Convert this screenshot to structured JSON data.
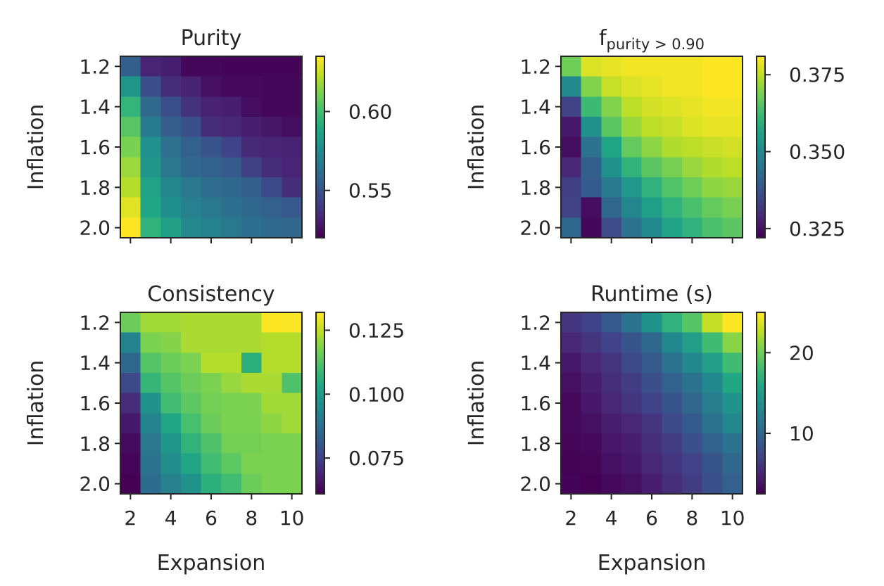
{
  "chart_data": [
    {
      "type": "heatmap",
      "title": "Purity",
      "title_sub": "",
      "title_tail": "",
      "xlabel": "",
      "ylabel": "Inflation",
      "x": [
        2,
        3,
        4,
        5,
        6,
        7,
        8,
        9,
        10
      ],
      "y": [
        1.2,
        1.3,
        1.4,
        1.5,
        1.6,
        1.7,
        1.8,
        1.9,
        2.0
      ],
      "x_ticks": [
        "2",
        "4",
        "6",
        "8",
        "10"
      ],
      "x_tick_labels_shown": false,
      "y_ticks": [
        "1.2",
        "1.4",
        "1.6",
        "1.8",
        "2.0"
      ],
      "colormap": "viridis",
      "vmin": 0.52,
      "vmax": 0.635,
      "colorbar_ticks": [
        {
          "value": 0.6,
          "label": "0.60"
        },
        {
          "value": 0.55,
          "label": "0.55"
        }
      ],
      "values": [
        [
          0.555,
          0.532,
          0.53,
          0.522,
          0.522,
          0.521,
          0.521,
          0.521,
          0.521
        ],
        [
          0.58,
          0.548,
          0.535,
          0.531,
          0.525,
          0.523,
          0.523,
          0.522,
          0.522
        ],
        [
          0.595,
          0.56,
          0.548,
          0.537,
          0.531,
          0.53,
          0.524,
          0.522,
          0.522
        ],
        [
          0.605,
          0.567,
          0.555,
          0.548,
          0.535,
          0.533,
          0.53,
          0.527,
          0.524
        ],
        [
          0.612,
          0.578,
          0.563,
          0.556,
          0.55,
          0.543,
          0.534,
          0.532,
          0.531
        ],
        [
          0.618,
          0.58,
          0.566,
          0.559,
          0.556,
          0.553,
          0.542,
          0.535,
          0.532
        ],
        [
          0.622,
          0.586,
          0.573,
          0.566,
          0.561,
          0.559,
          0.555,
          0.546,
          0.535
        ],
        [
          0.63,
          0.589,
          0.577,
          0.57,
          0.566,
          0.562,
          0.559,
          0.556,
          0.552
        ],
        [
          0.635,
          0.594,
          0.585,
          0.574,
          0.571,
          0.566,
          0.562,
          0.56,
          0.558
        ]
      ]
    },
    {
      "type": "heatmap",
      "title": "f",
      "title_sub": "purity > 0.90",
      "title_tail": "",
      "xlabel": "",
      "ylabel": "Inflation",
      "x": [
        2,
        3,
        4,
        5,
        6,
        7,
        8,
        9,
        10
      ],
      "y": [
        1.2,
        1.3,
        1.4,
        1.5,
        1.6,
        1.7,
        1.8,
        1.9,
        2.0
      ],
      "x_ticks": [
        "2",
        "4",
        "6",
        "8",
        "10"
      ],
      "x_tick_labels_shown": false,
      "y_ticks": [
        "1.2",
        "1.4",
        "1.6",
        "1.8",
        "2.0"
      ],
      "colormap": "viridis",
      "vmin": 0.322,
      "vmax": 0.381,
      "colorbar_ticks": [
        {
          "value": 0.375,
          "label": "0.375"
        },
        {
          "value": 0.35,
          "label": "0.350"
        },
        {
          "value": 0.325,
          "label": "0.325"
        }
      ],
      "values": [
        [
          0.368,
          0.378,
          0.379,
          0.38,
          0.38,
          0.38,
          0.38,
          0.381,
          0.381
        ],
        [
          0.35,
          0.37,
          0.376,
          0.378,
          0.379,
          0.38,
          0.38,
          0.381,
          0.381
        ],
        [
          0.334,
          0.362,
          0.37,
          0.375,
          0.377,
          0.378,
          0.379,
          0.38,
          0.38
        ],
        [
          0.326,
          0.352,
          0.366,
          0.372,
          0.375,
          0.376,
          0.378,
          0.379,
          0.379
        ],
        [
          0.324,
          0.344,
          0.357,
          0.367,
          0.371,
          0.374,
          0.375,
          0.376,
          0.377
        ],
        [
          0.329,
          0.34,
          0.352,
          0.36,
          0.366,
          0.369,
          0.372,
          0.374,
          0.375
        ],
        [
          0.333,
          0.339,
          0.346,
          0.353,
          0.36,
          0.365,
          0.368,
          0.371,
          0.372
        ],
        [
          0.334,
          0.324,
          0.342,
          0.349,
          0.355,
          0.36,
          0.364,
          0.367,
          0.369
        ],
        [
          0.342,
          0.323,
          0.336,
          0.344,
          0.35,
          0.356,
          0.36,
          0.364,
          0.366
        ]
      ]
    },
    {
      "type": "heatmap",
      "title": "Consistency",
      "title_sub": "",
      "title_tail": "",
      "xlabel": "Expansion",
      "ylabel": "Inflation",
      "x": [
        2,
        3,
        4,
        5,
        6,
        7,
        8,
        9,
        10
      ],
      "y": [
        1.2,
        1.3,
        1.4,
        1.5,
        1.6,
        1.7,
        1.8,
        1.9,
        2.0
      ],
      "x_ticks": [
        "2",
        "4",
        "6",
        "8",
        "10"
      ],
      "x_tick_labels_shown": true,
      "y_ticks": [
        "1.2",
        "1.4",
        "1.6",
        "1.8",
        "2.0"
      ],
      "colormap": "viridis",
      "vmin": 0.061,
      "vmax": 0.132,
      "colorbar_ticks": [
        {
          "value": 0.125,
          "label": "0.125"
        },
        {
          "value": 0.1,
          "label": "0.100"
        },
        {
          "value": 0.075,
          "label": "0.075"
        }
      ],
      "values": [
        [
          0.116,
          0.122,
          0.122,
          0.123,
          0.123,
          0.123,
          0.123,
          0.132,
          0.132
        ],
        [
          0.093,
          0.118,
          0.119,
          0.123,
          0.123,
          0.123,
          0.123,
          0.124,
          0.124
        ],
        [
          0.085,
          0.113,
          0.116,
          0.118,
          0.124,
          0.124,
          0.106,
          0.124,
          0.124
        ],
        [
          0.077,
          0.108,
          0.113,
          0.116,
          0.118,
          0.121,
          0.123,
          0.123,
          0.112
        ],
        [
          0.07,
          0.097,
          0.11,
          0.114,
          0.117,
          0.118,
          0.118,
          0.122,
          0.122
        ],
        [
          0.066,
          0.093,
          0.103,
          0.111,
          0.116,
          0.118,
          0.118,
          0.12,
          0.122
        ],
        [
          0.063,
          0.089,
          0.098,
          0.107,
          0.112,
          0.117,
          0.117,
          0.118,
          0.118
        ],
        [
          0.062,
          0.088,
          0.096,
          0.103,
          0.11,
          0.114,
          0.118,
          0.118,
          0.118
        ],
        [
          0.061,
          0.086,
          0.092,
          0.097,
          0.106,
          0.11,
          0.116,
          0.118,
          0.118
        ]
      ]
    },
    {
      "type": "heatmap",
      "title": "Runtime",
      "title_sub": "",
      "title_tail": " (s)",
      "xlabel": "Expansion",
      "ylabel": "Inflation",
      "x": [
        2,
        3,
        4,
        5,
        6,
        7,
        8,
        9,
        10
      ],
      "y": [
        1.2,
        1.3,
        1.4,
        1.5,
        1.6,
        1.7,
        1.8,
        1.9,
        2.0
      ],
      "x_ticks": [
        "2",
        "4",
        "6",
        "8",
        "10"
      ],
      "x_tick_labels_shown": true,
      "y_ticks": [
        "1.2",
        "1.4",
        "1.6",
        "1.8",
        "2.0"
      ],
      "colormap": "viridis",
      "vmin": 2.5,
      "vmax": 25,
      "colorbar_ticks": [
        {
          "value": 20,
          "label": "20"
        },
        {
          "value": 10,
          "label": "10"
        }
      ],
      "values": [
        [
          6.0,
          7.0,
          9.0,
          11.0,
          14.0,
          17.0,
          19.0,
          23.0,
          25.0
        ],
        [
          5.0,
          6.0,
          7.0,
          8.5,
          10.0,
          13.0,
          15.0,
          18.0,
          21.0
        ],
        [
          4.0,
          5.0,
          6.0,
          7.5,
          9.0,
          11.0,
          13.0,
          15.0,
          18.0
        ],
        [
          3.5,
          4.5,
          5.5,
          6.5,
          8.0,
          9.5,
          11.0,
          13.0,
          16.0
        ],
        [
          3.0,
          4.0,
          5.0,
          6.0,
          7.0,
          8.5,
          10.0,
          12.0,
          14.0
        ],
        [
          3.0,
          3.5,
          4.5,
          5.0,
          6.0,
          7.5,
          9.0,
          11.0,
          13.0
        ],
        [
          2.8,
          3.0,
          4.0,
          4.5,
          5.5,
          6.5,
          8.0,
          9.5,
          11.0
        ],
        [
          2.6,
          2.8,
          3.5,
          4.0,
          5.0,
          6.0,
          7.0,
          8.5,
          10.0
        ],
        [
          2.7,
          2.5,
          3.0,
          3.5,
          4.5,
          5.5,
          6.5,
          8.0,
          9.5
        ]
      ]
    }
  ]
}
